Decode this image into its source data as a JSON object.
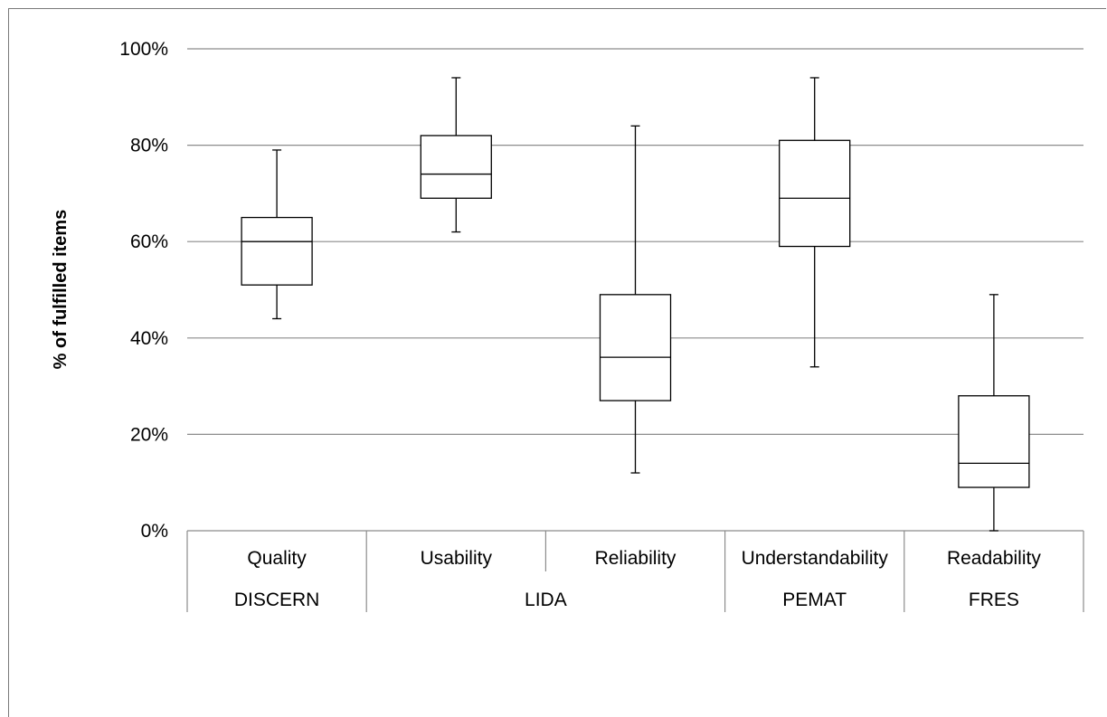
{
  "chart_data": {
    "type": "box",
    "title": "",
    "xlabel": "",
    "ylabel": "% of fulfilled items",
    "ylim": [
      0,
      100
    ],
    "yticks": [
      "0%",
      "20%",
      "40%",
      "60%",
      "80%",
      "100%"
    ],
    "grid": "horizontal",
    "legend": "none",
    "categories": [
      "Quality",
      "Usability",
      "Reliability",
      "Understandability",
      "Readability"
    ],
    "groups": [
      {
        "label": "DISCERN",
        "categories": [
          "Quality"
        ]
      },
      {
        "label": "LIDA",
        "categories": [
          "Usability",
          "Reliability"
        ]
      },
      {
        "label": "PEMAT",
        "categories": [
          "Understandability"
        ]
      },
      {
        "label": "FRES",
        "categories": [
          "Readability"
        ]
      }
    ],
    "boxes": [
      {
        "category": "Quality",
        "min": 44,
        "q1": 51,
        "median": 60,
        "q3": 65,
        "max": 79
      },
      {
        "category": "Usability",
        "min": 62,
        "q1": 69,
        "median": 74,
        "q3": 82,
        "max": 94
      },
      {
        "category": "Reliability",
        "min": 12,
        "q1": 27,
        "median": 36,
        "q3": 49,
        "max": 84
      },
      {
        "category": "Understandability",
        "min": 34,
        "q1": 59,
        "median": 69,
        "q3": 81,
        "max": 94
      },
      {
        "category": "Readability",
        "min": 0,
        "q1": 9,
        "median": 14,
        "q3": 28,
        "max": 49
      }
    ],
    "colors": {
      "box_fill": "#ffffff",
      "stroke": "#000000",
      "grid": "#8c8c8c"
    }
  }
}
